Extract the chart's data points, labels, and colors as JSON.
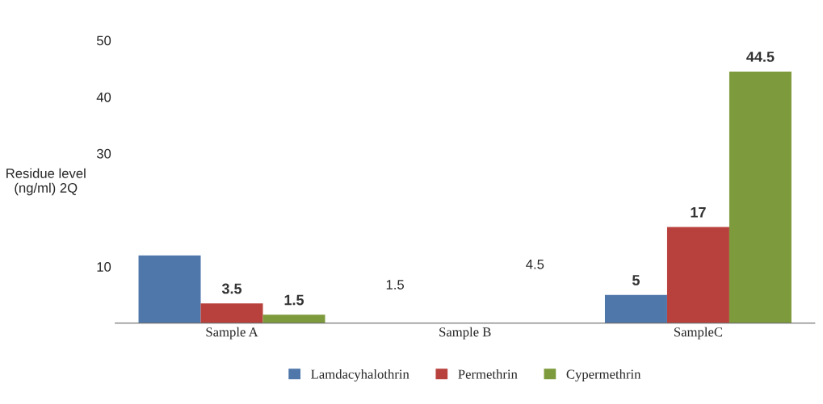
{
  "chart_data": {
    "type": "bar",
    "ylabel": "Residue level (ng/ml) 2Q",
    "categories": [
      "Sample A",
      "Sample B",
      "SampleC"
    ],
    "series": [
      {
        "name": "Lamdacyhalothrin",
        "color": "#4f77aa",
        "values": [
          12,
          null,
          5
        ],
        "value_labels": [
          null,
          null,
          "5"
        ]
      },
      {
        "name": "Permethrin",
        "color": "#b8413d",
        "values": [
          3.5,
          null,
          17
        ],
        "value_labels": [
          "3.5",
          null,
          "17"
        ]
      },
      {
        "name": "Cypermethrin",
        "color": "#7d9a3c",
        "values": [
          1.5,
          null,
          44.5
        ],
        "value_labels": [
          "1.5",
          null,
          "44.5"
        ]
      }
    ],
    "annotations": [
      "1.5",
      "4.5"
    ],
    "ylim": [
      0,
      50
    ],
    "yticks": [
      10,
      30,
      40,
      50
    ],
    "grid": false,
    "legend": "bottom"
  }
}
